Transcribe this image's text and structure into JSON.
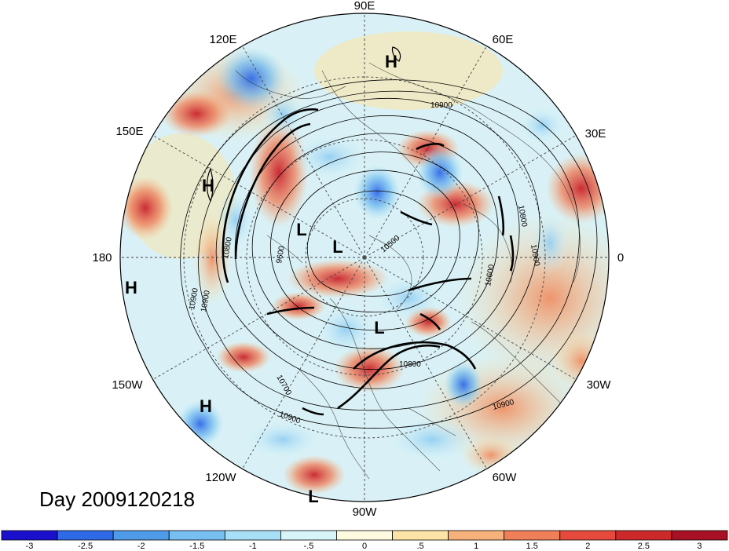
{
  "map": {
    "projection": "north-polar-stereographic",
    "longitude_labels": [
      "90E",
      "60E",
      "30E",
      "0",
      "30W",
      "60W",
      "90W",
      "120W",
      "150W",
      "180",
      "150E",
      "120E"
    ],
    "pressure_systems": [
      {
        "type": "H",
        "label": "H",
        "region": "Siberia"
      },
      {
        "type": "H",
        "label": "H",
        "region": "western Pacific"
      },
      {
        "type": "H",
        "label": "H",
        "region": "central Pacific"
      },
      {
        "type": "H",
        "label": "H",
        "region": "eastern Pacific"
      },
      {
        "type": "L",
        "label": "L",
        "region": "Arctic"
      },
      {
        "type": "L",
        "label": "L",
        "region": "Arctic"
      },
      {
        "type": "L",
        "label": "L",
        "region": "Canada"
      },
      {
        "type": "L",
        "label": "L",
        "region": "tropical Pacific"
      }
    ],
    "contour_labels": [
      "10900",
      "10800",
      "10900",
      "10600",
      "10900",
      "10800",
      "10700",
      "10900",
      "10900",
      "10500",
      "9600",
      "10900",
      "10800"
    ],
    "colors": {
      "ocean_boundary": "#333333",
      "contour": "#000000",
      "grid": "#555555"
    }
  },
  "title": {
    "day_label": "Day 2009120218"
  },
  "colorbar": {
    "labels": [
      "-3",
      "-2.5",
      "-2",
      "-1.5",
      "-1",
      "-.5",
      "0",
      ".5",
      "1",
      "1.5",
      "2",
      "2.5",
      "3"
    ],
    "colors": [
      "#1a0fcc",
      "#2f6ae6",
      "#4f9be8",
      "#77bff0",
      "#a7e0f6",
      "#d7f4f8",
      "#fdfae0",
      "#fbe4a6",
      "#f6b27a",
      "#ef7f59",
      "#e64a3c",
      "#cc2a2a",
      "#a81025"
    ]
  }
}
